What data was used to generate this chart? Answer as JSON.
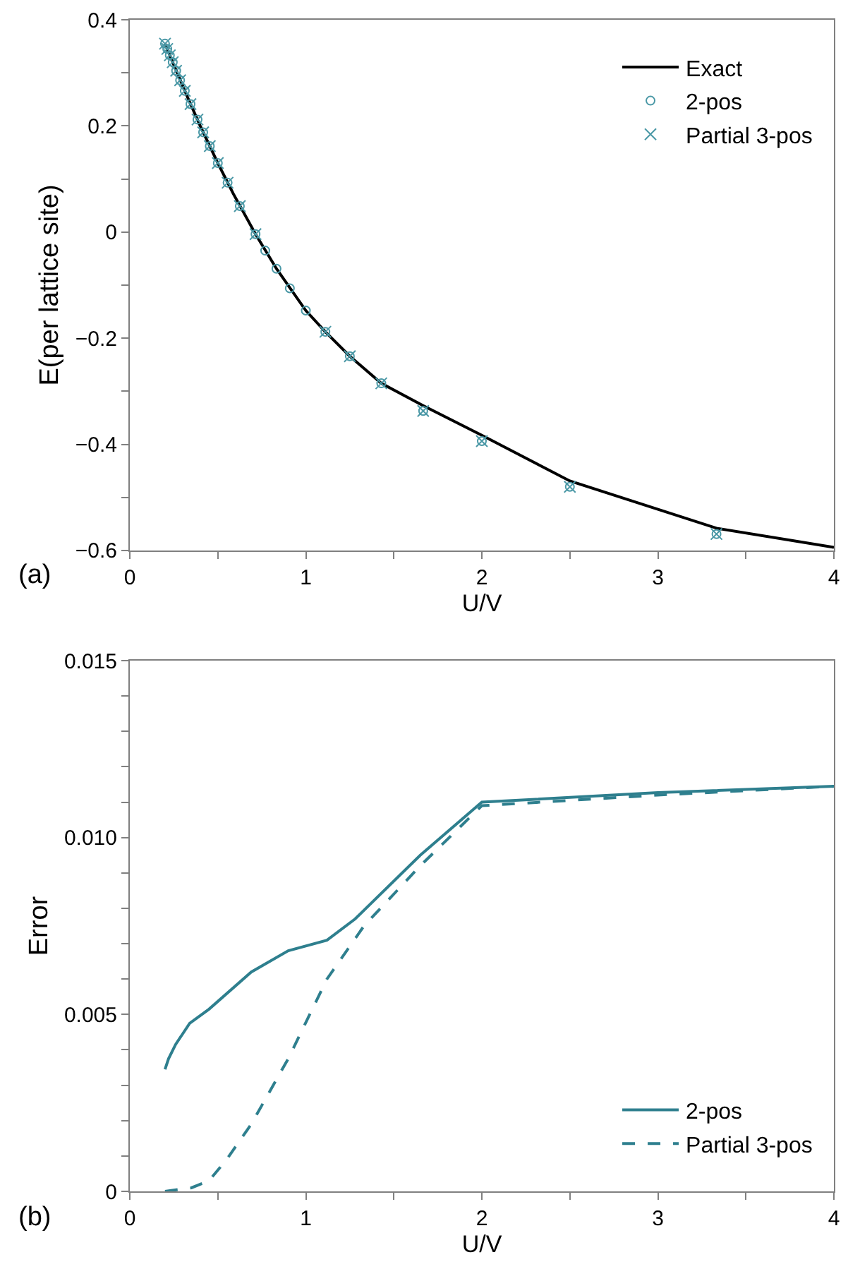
{
  "chart_data": [
    {
      "type": "line",
      "xlabel": "U/V",
      "ylabel": "E(per lattice site)",
      "annotations": [
        "(a)"
      ],
      "legend": "top right",
      "xlim": [
        0,
        4
      ],
      "ylim": [
        -0.6,
        0.4
      ],
      "xticks": [
        0,
        {
          "value": 0.5,
          "label": null
        },
        1,
        {
          "value": 1.5,
          "label": null
        },
        2,
        {
          "value": 2.5,
          "label": null
        },
        3,
        {
          "value": 3.5,
          "label": null
        },
        4
      ],
      "yticks": [
        {
          "value": -0.6,
          "label": "−0.6"
        },
        {
          "value": -0.5,
          "label": null
        },
        {
          "value": -0.4,
          "label": "−0.4"
        },
        {
          "value": -0.3,
          "label": null
        },
        {
          "value": -0.2,
          "label": "−0.2"
        },
        {
          "value": -0.1,
          "label": null
        },
        0,
        {
          "value": 0.1,
          "label": null
        },
        0.2,
        {
          "value": 0.3,
          "label": null
        },
        0.4
      ],
      "series": [
        {
          "name": "Exact",
          "type": "line",
          "color": "#000000",
          "line_style": "solid",
          "marker": "none",
          "x": [
            0.2,
            0.25,
            0.3333,
            0.4,
            0.5,
            0.5882,
            0.7143,
            0.8333,
            1.0,
            1.111,
            1.25,
            1.4286,
            1.6667,
            2.0,
            2.5,
            3.333,
            4.0
          ],
          "values": [
            0.355,
            0.315,
            0.25,
            0.2,
            0.13,
            0.072,
            -0.004,
            -0.069,
            -0.148,
            -0.188,
            -0.234,
            -0.285,
            -0.327,
            -0.383,
            -0.469,
            -0.558,
            -0.594
          ]
        },
        {
          "name": "2-pos",
          "type": "scatter",
          "color": "#4a98a6",
          "marker": "circle",
          "x": [
            0.2,
            0.2128,
            0.2273,
            0.2439,
            0.2632,
            0.2857,
            0.3125,
            0.3448,
            0.3846,
            0.4167,
            0.4545,
            0.5,
            0.5556,
            0.625,
            0.7143,
            0.7692,
            0.8333,
            0.9091,
            1.0,
            1.111,
            1.25,
            1.4286,
            1.6667,
            2.0,
            2.5,
            3.333
          ],
          "values": [
            0.355,
            0.345,
            0.333,
            0.32,
            0.304,
            0.286,
            0.266,
            0.241,
            0.212,
            0.188,
            0.162,
            0.13,
            0.093,
            0.049,
            -0.004,
            -0.035,
            -0.069,
            -0.106,
            -0.148,
            -0.188,
            -0.234,
            -0.285,
            -0.337,
            -0.394,
            -0.48,
            -0.569
          ]
        },
        {
          "name": "Partial 3-pos",
          "type": "scatter",
          "color": "#4a98a6",
          "marker": "cross",
          "x": [
            0.2,
            0.2128,
            0.2273,
            0.2439,
            0.2632,
            0.2857,
            0.3125,
            0.3448,
            0.3846,
            0.4167,
            0.4545,
            0.5,
            0.5556,
            0.625,
            0.7143,
            0.7692,
            0.8333,
            0.9091,
            1.0,
            1.111,
            1.25,
            1.4286,
            1.6667,
            2.0,
            2.5,
            3.333
          ],
          "values": [
            0.355,
            0.345,
            0.333,
            0.32,
            0.304,
            0.286,
            0.266,
            0.241,
            0.212,
            0.188,
            0.162,
            0.13,
            0.093,
            0.049,
            -0.004,
            null,
            null,
            null,
            null,
            -0.188,
            -0.234,
            -0.285,
            -0.337,
            -0.394,
            -0.48,
            -0.569
          ]
        }
      ]
    },
    {
      "type": "line",
      "xlabel": "U/V",
      "ylabel": "Error",
      "annotations": [
        "(b)"
      ],
      "legend": "bottom right",
      "xlim": [
        0,
        4
      ],
      "ylim": [
        0,
        0.015
      ],
      "xticks": [
        0,
        {
          "value": 0.5,
          "label": null
        },
        1,
        {
          "value": 1.5,
          "label": null
        },
        2,
        {
          "value": 2.5,
          "label": null
        },
        3,
        {
          "value": 3.5,
          "label": null
        },
        4
      ],
      "yticks": [
        0,
        {
          "value": 0.001,
          "label": null
        },
        {
          "value": 0.002,
          "label": null
        },
        {
          "value": 0.003,
          "label": null
        },
        {
          "value": 0.004,
          "label": null
        },
        0.005,
        {
          "value": 0.006,
          "label": null
        },
        {
          "value": 0.007,
          "label": null
        },
        {
          "value": 0.008,
          "label": null
        },
        {
          "value": 0.009,
          "label": null
        },
        {
          "value": 0.01,
          "label": "0.010"
        },
        {
          "value": 0.011,
          "label": null
        },
        {
          "value": 0.012,
          "label": null
        },
        {
          "value": 0.013,
          "label": null
        },
        {
          "value": 0.014,
          "label": null
        },
        0.015
      ],
      "series": [
        {
          "name": "2-pos",
          "type": "line",
          "color": "#2e7f8e",
          "line_style": "solid",
          "x": [
            0.2,
            0.22,
            0.26,
            0.34,
            0.45,
            0.69,
            0.9,
            1.12,
            1.28,
            1.65,
            2.0,
            3.0,
            4.0
          ],
          "values": [
            0.00345,
            0.00375,
            0.00415,
            0.00475,
            0.00515,
            0.0062,
            0.0068,
            0.0071,
            0.0077,
            0.0095,
            0.011,
            0.01127,
            0.01145
          ]
        },
        {
          "name": "Partial 3-pos",
          "type": "line",
          "color": "#2e7f8e",
          "line_style": "dashed",
          "x": [
            0.2,
            0.35,
            0.45,
            0.55,
            0.69,
            0.9,
            1.12,
            1.33,
            1.65,
            2.0,
            3.0,
            4.0
          ],
          "values": [
            0.0,
            0.0001,
            0.0003,
            0.0009,
            0.0019,
            0.00375,
            0.006,
            0.0075,
            0.0092,
            0.0109,
            0.0112,
            0.01145
          ]
        }
      ]
    }
  ]
}
